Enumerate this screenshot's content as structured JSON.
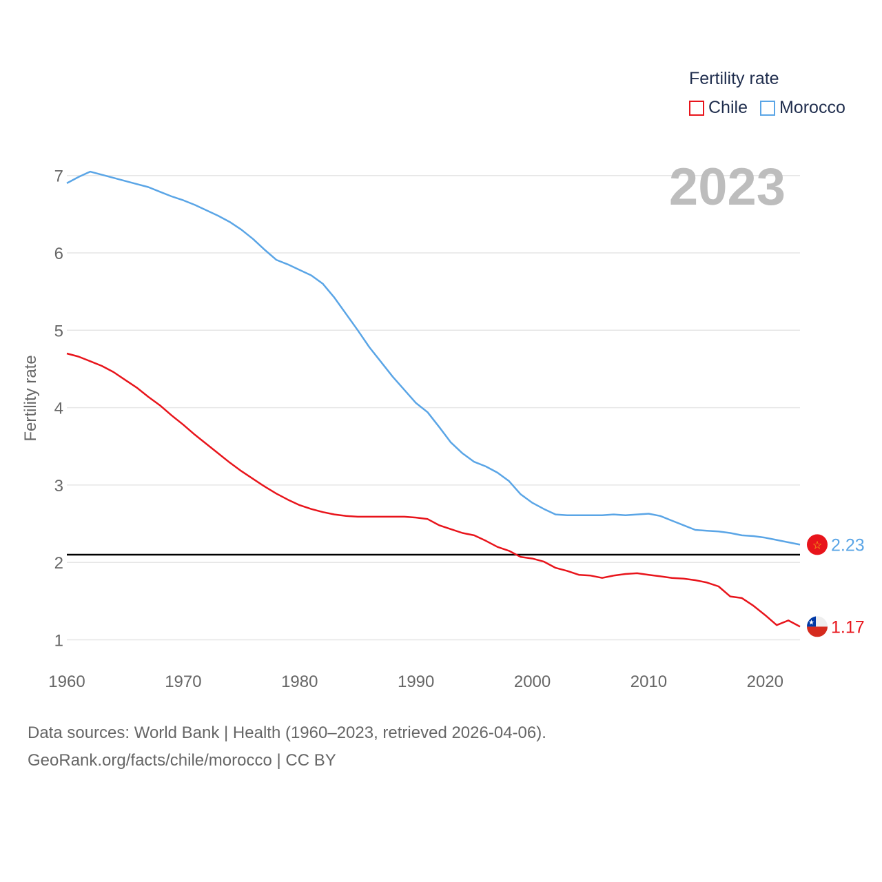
{
  "chart_data": {
    "type": "line",
    "title": "Fertility rate",
    "xlabel": "",
    "ylabel": "Fertility rate",
    "xlim": [
      1960,
      2023
    ],
    "ylim": [
      0.75,
      7.5
    ],
    "x_ticks": [
      1960,
      1970,
      1980,
      1990,
      2000,
      2010,
      2020
    ],
    "y_ticks": [
      1,
      2,
      3,
      4,
      5,
      6,
      7
    ],
    "reference_line": 2.1,
    "current_year": "2023",
    "x": [
      1960,
      1961,
      1962,
      1963,
      1964,
      1965,
      1966,
      1967,
      1968,
      1969,
      1970,
      1971,
      1972,
      1973,
      1974,
      1975,
      1976,
      1977,
      1978,
      1979,
      1980,
      1981,
      1982,
      1983,
      1984,
      1985,
      1986,
      1987,
      1988,
      1989,
      1990,
      1991,
      1992,
      1993,
      1994,
      1995,
      1996,
      1997,
      1998,
      1999,
      2000,
      2001,
      2002,
      2003,
      2004,
      2005,
      2006,
      2007,
      2008,
      2009,
      2010,
      2011,
      2012,
      2013,
      2014,
      2015,
      2016,
      2017,
      2018,
      2019,
      2020,
      2021,
      2022,
      2023
    ],
    "series": [
      {
        "name": "Chile",
        "color": "#e8141b",
        "end_label": "1.17",
        "values": [
          4.7,
          4.66,
          4.6,
          4.54,
          4.46,
          4.36,
          4.26,
          4.14,
          4.03,
          3.9,
          3.78,
          3.65,
          3.53,
          3.41,
          3.29,
          3.18,
          3.08,
          2.98,
          2.89,
          2.81,
          2.74,
          2.69,
          2.65,
          2.62,
          2.6,
          2.59,
          2.59,
          2.59,
          2.59,
          2.59,
          2.58,
          2.56,
          2.48,
          2.43,
          2.38,
          2.35,
          2.28,
          2.2,
          2.15,
          2.07,
          2.05,
          2.01,
          1.93,
          1.89,
          1.84,
          1.83,
          1.8,
          1.83,
          1.85,
          1.86,
          1.84,
          1.82,
          1.8,
          1.79,
          1.77,
          1.74,
          1.69,
          1.56,
          1.54,
          1.44,
          1.32,
          1.19,
          1.25,
          1.17
        ]
      },
      {
        "name": "Morocco",
        "color": "#5aa5e6",
        "end_label": "2.23",
        "values": [
          6.9,
          6.98,
          7.05,
          7.01,
          6.97,
          6.93,
          6.89,
          6.85,
          6.79,
          6.73,
          6.68,
          6.62,
          6.55,
          6.48,
          6.4,
          6.3,
          6.18,
          6.04,
          5.91,
          5.85,
          5.78,
          5.71,
          5.6,
          5.42,
          5.21,
          5.0,
          4.78,
          4.59,
          4.4,
          4.23,
          4.06,
          3.94,
          3.75,
          3.55,
          3.41,
          3.3,
          3.24,
          3.16,
          3.05,
          2.88,
          2.77,
          2.69,
          2.62,
          2.61,
          2.61,
          2.61,
          2.61,
          2.62,
          2.61,
          2.62,
          2.63,
          2.6,
          2.54,
          2.48,
          2.42,
          2.41,
          2.4,
          2.38,
          2.35,
          2.34,
          2.32,
          2.29,
          2.26,
          2.23
        ]
      }
    ]
  },
  "footer": {
    "line1": "Data sources: World Bank | Health (1960–2023, retrieved 2026-04-06).",
    "line2": "GeoRank.org/facts/chile/morocco | CC BY"
  },
  "flags": {
    "chile": "chile-flag-icon",
    "morocco": "morocco-flag-icon"
  }
}
